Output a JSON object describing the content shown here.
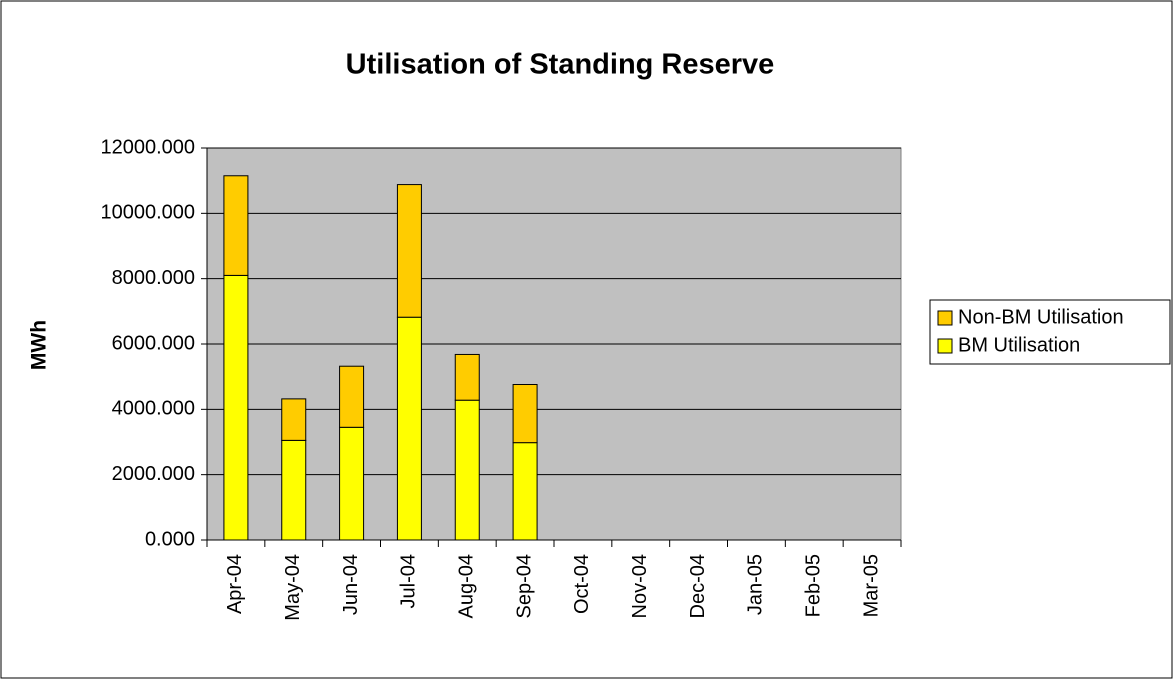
{
  "chart_data": {
    "type": "stacked_bar",
    "title": "Utilisation of Standing Reserve",
    "y_label": "MWh",
    "categories": [
      "Apr-04",
      "May-04",
      "Jun-04",
      "Jul-04",
      "Aug-04",
      "Sep-04",
      "Oct-04",
      "Nov-04",
      "Dec-04",
      "Jan-05",
      "Feb-05",
      "Mar-05"
    ],
    "series": [
      {
        "name": "BM Utilisation",
        "color": "#ffff00",
        "values": [
          8100,
          3050,
          3450,
          6820,
          4280,
          2980,
          null,
          null,
          null,
          null,
          null,
          null
        ]
      },
      {
        "name": "Non-BM Utilisation",
        "color": "#ffcc00",
        "values": [
          3050,
          1270,
          1870,
          4060,
          1400,
          1780,
          null,
          null,
          null,
          null,
          null,
          null
        ]
      }
    ],
    "ylim": [
      0,
      12000
    ],
    "yticks": [
      {
        "value": 0,
        "label": "0.000"
      },
      {
        "value": 2000,
        "label": "2000.000"
      },
      {
        "value": 4000,
        "label": "4000.000"
      },
      {
        "value": 6000,
        "label": "6000.000"
      },
      {
        "value": 8000,
        "label": "8000.000"
      },
      {
        "value": 10000,
        "label": "10000.000"
      },
      {
        "value": 12000,
        "label": "12000.000"
      }
    ],
    "grid": true,
    "legend": "right",
    "plot_background": "#c0c0c0"
  }
}
